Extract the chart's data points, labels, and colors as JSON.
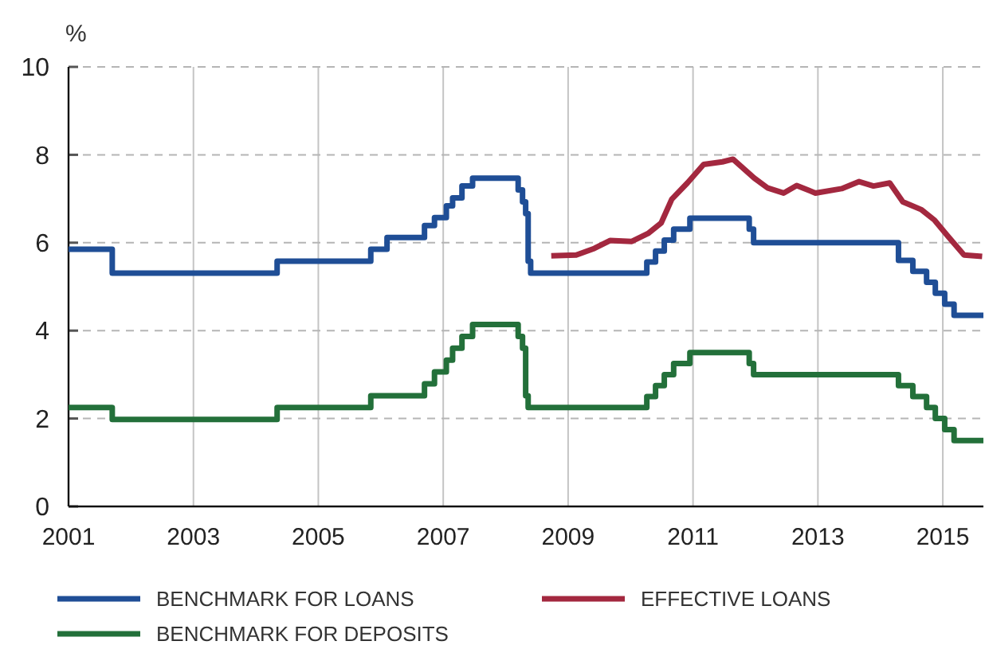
{
  "chart_data": {
    "type": "step",
    "ylabel": "%",
    "xlim": [
      2001,
      2015.65
    ],
    "xticks": [
      2001,
      2003,
      2005,
      2007,
      2009,
      2011,
      2013,
      2015
    ],
    "ylim": [
      0,
      10
    ],
    "yticks": [
      0,
      2,
      4,
      6,
      8,
      10
    ],
    "grid": true,
    "legend": "bottom",
    "series": [
      {
        "name": "BENCHMARK FOR LOANS",
        "color": "#1f4e96",
        "x": [
          2001,
          2001.7,
          2004.34,
          2005.84,
          2006.1,
          2006.7,
          2006.86,
          2007.05,
          2007.15,
          2007.3,
          2007.47,
          2008.2,
          2008.27,
          2008.32,
          2008.36,
          2008.4,
          2010.26,
          2010.4,
          2010.54,
          2010.69,
          2010.95,
          2011.9,
          2011.97,
          2014.29,
          2014.52,
          2014.74,
          2014.88,
          2015.03,
          2015.18,
          2015.65
        ],
        "values": [
          5.85,
          5.31,
          5.58,
          5.85,
          6.12,
          6.39,
          6.57,
          6.84,
          7.02,
          7.29,
          7.47,
          7.2,
          6.93,
          6.66,
          5.58,
          5.31,
          5.56,
          5.81,
          6.06,
          6.31,
          6.56,
          6.31,
          6.0,
          5.6,
          5.35,
          5.1,
          4.85,
          4.6,
          4.35,
          4.35
        ]
      },
      {
        "name": "EFFECTIVE LOANS",
        "type": "line",
        "color": "#a3283f",
        "x": [
          2008.73,
          2009.13,
          2009.42,
          2009.67,
          2010.02,
          2010.28,
          2010.49,
          2010.66,
          2010.91,
          2011.17,
          2011.47,
          2011.64,
          2011.98,
          2012.19,
          2012.45,
          2012.66,
          2012.96,
          2013.38,
          2013.66,
          2013.89,
          2014.15,
          2014.36,
          2014.66,
          2014.87,
          2015.08,
          2015.34,
          2015.63
        ],
        "values": [
          5.7,
          5.72,
          5.87,
          6.05,
          6.03,
          6.21,
          6.45,
          6.99,
          7.36,
          7.78,
          7.84,
          7.9,
          7.47,
          7.25,
          7.13,
          7.3,
          7.13,
          7.23,
          7.39,
          7.29,
          7.36,
          6.93,
          6.75,
          6.51,
          6.15,
          5.72,
          5.69
        ]
      },
      {
        "name": "BENCHMARK FOR DEPOSITS",
        "color": "#23703a",
        "x": [
          2001,
          2001.7,
          2004.34,
          2005.84,
          2006.7,
          2006.86,
          2007.05,
          2007.15,
          2007.3,
          2007.47,
          2008.2,
          2008.27,
          2008.32,
          2008.36,
          2008.4,
          2010.26,
          2010.4,
          2010.54,
          2010.69,
          2010.95,
          2011.9,
          2011.97,
          2014.29,
          2014.52,
          2014.74,
          2014.88,
          2015.03,
          2015.18,
          2015.65
        ],
        "values": [
          2.25,
          1.98,
          2.25,
          2.52,
          2.79,
          3.06,
          3.33,
          3.6,
          3.87,
          4.14,
          3.87,
          3.6,
          2.52,
          2.25,
          2.25,
          2.5,
          2.75,
          3.0,
          3.25,
          3.5,
          3.25,
          3.0,
          2.75,
          2.5,
          2.25,
          2.0,
          1.75,
          1.5,
          1.5
        ]
      }
    ]
  }
}
